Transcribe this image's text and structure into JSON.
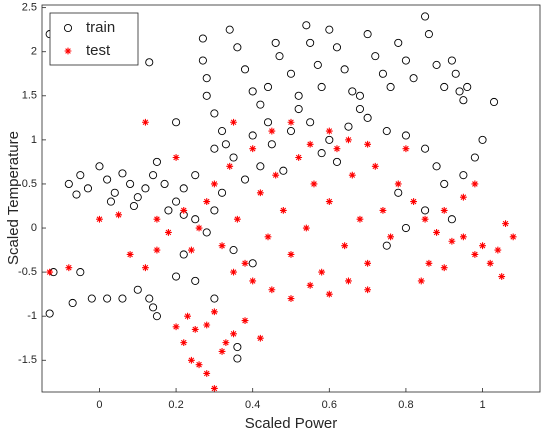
{
  "chart_data": {
    "type": "scatter",
    "xlabel": "Scaled Power",
    "ylabel": "Scaled Temperature",
    "xlim": [
      -0.15,
      1.15
    ],
    "ylim": [
      -1.86,
      2.53
    ],
    "xticks": [
      0,
      0.2,
      0.4,
      0.6,
      0.8,
      1
    ],
    "yticks": [
      -1.5,
      -1,
      -0.5,
      0,
      0.5,
      1,
      1.5,
      2,
      2.5
    ],
    "grid": false,
    "legend": "upper left",
    "series": [
      {
        "name": "train",
        "color": "#000000",
        "marker": "circle",
        "x": [
          -0.13,
          -0.13,
          0.13,
          -0.08,
          -0.05,
          -0.03,
          0.0,
          0.02,
          0.04,
          0.06,
          0.08,
          0.1,
          0.12,
          0.14,
          0.15,
          0.17,
          0.03,
          -0.06,
          0.09,
          0.18,
          0.2,
          0.22,
          0.25,
          0.28,
          0.3,
          -0.07,
          -0.02,
          0.02,
          0.06,
          0.13,
          0.14,
          0.15,
          0.1,
          0.2,
          0.22,
          0.25,
          0.3,
          0.36,
          0.36,
          -0.12,
          -0.05,
          0.27,
          0.27,
          0.28,
          0.28,
          0.3,
          0.32,
          0.34,
          0.36,
          0.38,
          0.4,
          0.42,
          0.44,
          0.46,
          0.47,
          0.5,
          0.52,
          0.54,
          0.55,
          0.57,
          0.58,
          0.6,
          0.62,
          0.64,
          0.66,
          0.68,
          0.7,
          0.72,
          0.74,
          0.76,
          0.78,
          0.8,
          0.82,
          0.85,
          0.86,
          0.88,
          0.9,
          0.92,
          0.93,
          0.94,
          0.95,
          0.96,
          1.03,
          0.4,
          0.45,
          0.5,
          0.55,
          0.6,
          0.65,
          0.7,
          0.75,
          0.8,
          0.85,
          0.88,
          0.9,
          0.95,
          0.98,
          1.0,
          0.92,
          0.85,
          0.8,
          0.75,
          0.78,
          0.35,
          0.3,
          0.25,
          0.22,
          0.32,
          0.38,
          0.42,
          0.35,
          0.4,
          0.2,
          0.33,
          0.58,
          0.62,
          0.48,
          0.68,
          0.52,
          0.44
        ],
        "values": [
          2.2,
          -0.97,
          1.88,
          0.5,
          0.6,
          0.45,
          0.7,
          0.55,
          0.4,
          0.62,
          0.5,
          0.35,
          0.45,
          0.6,
          0.75,
          0.5,
          0.3,
          0.38,
          0.25,
          0.2,
          0.3,
          0.15,
          0.1,
          -0.05,
          0.2,
          -0.85,
          -0.8,
          -0.8,
          -0.8,
          -0.8,
          -0.9,
          -1.0,
          -0.7,
          -0.55,
          -0.3,
          -0.6,
          -0.8,
          -1.35,
          -1.48,
          -0.5,
          -0.5,
          2.15,
          1.9,
          1.7,
          1.5,
          1.3,
          1.1,
          2.25,
          2.05,
          1.8,
          1.55,
          1.4,
          1.2,
          2.1,
          1.95,
          1.75,
          1.5,
          2.3,
          2.1,
          1.85,
          1.6,
          2.25,
          2.05,
          1.8,
          1.55,
          1.35,
          2.2,
          1.95,
          1.75,
          1.6,
          2.1,
          1.9,
          1.7,
          2.4,
          2.2,
          1.85,
          1.6,
          1.9,
          1.75,
          1.55,
          1.45,
          1.6,
          1.43,
          1.05,
          0.95,
          1.1,
          1.2,
          1.0,
          1.15,
          1.25,
          1.1,
          1.05,
          0.9,
          0.7,
          0.5,
          0.6,
          0.8,
          1.0,
          0.1,
          0.2,
          0.0,
          -0.2,
          0.4,
          0.8,
          0.9,
          0.6,
          0.45,
          0.4,
          0.55,
          0.7,
          -0.25,
          -0.4,
          1.2,
          0.95,
          0.85,
          0.75,
          0.65,
          1.5,
          1.35,
          1.6
        ]
      },
      {
        "name": "test",
        "color": "#ff0000",
        "marker": "asterisk",
        "x": [
          -0.13,
          -0.08,
          0.08,
          0.12,
          0.15,
          0.0,
          0.05,
          0.2,
          0.24,
          0.26,
          0.28,
          0.3,
          0.32,
          0.34,
          0.36,
          0.38,
          0.4,
          0.42,
          0.44,
          0.46,
          0.48,
          0.5,
          0.52,
          0.54,
          0.56,
          0.58,
          0.6,
          0.62,
          0.64,
          0.66,
          0.68,
          0.7,
          0.72,
          0.74,
          0.76,
          0.78,
          0.8,
          0.45,
          0.5,
          0.55,
          0.6,
          0.65,
          0.7,
          0.4,
          0.35,
          0.3,
          0.28,
          0.25,
          0.23,
          0.22,
          0.24,
          0.26,
          0.28,
          0.3,
          0.32,
          0.35,
          0.38,
          0.2,
          0.42,
          0.33,
          0.82,
          0.85,
          0.88,
          0.9,
          0.92,
          0.95,
          0.98,
          1.0,
          1.02,
          1.04,
          1.06,
          1.08,
          1.05,
          0.95,
          0.98,
          0.86,
          0.84,
          0.9,
          0.5,
          0.45,
          0.6,
          0.55,
          0.35,
          0.15,
          0.18,
          0.22,
          0.12,
          0.65,
          0.7
        ],
        "values": [
          -0.5,
          -0.45,
          -0.3,
          -0.45,
          -0.25,
          0.1,
          0.15,
          0.8,
          -0.25,
          0.0,
          0.3,
          0.5,
          -0.2,
          0.7,
          0.1,
          -0.4,
          0.9,
          0.4,
          -0.1,
          0.6,
          0.2,
          -0.3,
          0.8,
          0.0,
          0.5,
          -0.5,
          0.3,
          0.9,
          -0.2,
          0.6,
          0.1,
          -0.4,
          0.7,
          0.2,
          -0.1,
          0.5,
          0.9,
          -0.7,
          -0.8,
          -0.65,
          -0.75,
          -0.6,
          -0.7,
          -0.6,
          -0.5,
          -0.95,
          -1.1,
          -1.15,
          -1.0,
          -1.3,
          -1.5,
          -1.55,
          -1.65,
          -1.82,
          -1.4,
          -1.2,
          -1.05,
          -1.12,
          -1.25,
          -1.3,
          0.3,
          0.1,
          -0.05,
          0.2,
          -0.15,
          -0.1,
          -0.3,
          -0.2,
          -0.4,
          -0.25,
          0.05,
          -0.1,
          -0.55,
          0.35,
          0.5,
          -0.4,
          -0.6,
          -0.45,
          1.2,
          1.1,
          1.1,
          0.95,
          1.2,
          0.1,
          -0.05,
          0.2,
          1.2,
          1.0,
          0.95
        ]
      }
    ]
  }
}
